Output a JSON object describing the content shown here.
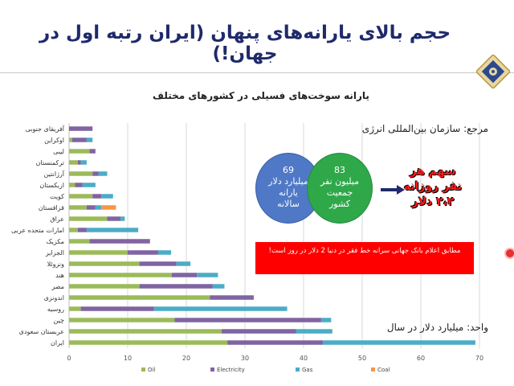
{
  "slide": {
    "title": "حجم بالای یارانه‌های پنهان (ایران رتبه اول در جهان!)",
    "chart_heading": "یارانه سوخت‌های فسیلی در کشورهای مختلف",
    "source_label": "مرجع: سازمان بین‌المللی انرژی",
    "unit_label": "واحد: میلیارد دلار در سال",
    "bubble_subsidy": {
      "number": "69",
      "text": "میلیارد دلار یارانه سالانه"
    },
    "bubble_population": {
      "number": "83",
      "text": "میلیون نفر جمعیت کشور"
    },
    "per_person": "سهم هر نفر روزانه ۲،۲ دلار",
    "poverty_note": "مطابق اعلام بانک جهانی سرانه خط فقر در دنیا 2 دلار در روز است!"
  },
  "colors": {
    "oil": "#9bbb59",
    "electricity": "#8064a2",
    "gas": "#4bacc6",
    "coal": "#f79646",
    "title": "#1f2a6b",
    "red_box": "#ff0000"
  },
  "chart_data": {
    "type": "bar",
    "orientation": "horizontal",
    "stacked": true,
    "categories": [
      "ایران",
      "عربستان سعودی",
      "چین",
      "روسیه",
      "اندونزی",
      "مصر",
      "هند",
      "ونزوئلا",
      "الجزایر",
      "مکزیک",
      "امارات متحده عربی",
      "عراق",
      "قزاقستان",
      "کویت",
      "ازبکستان",
      "آرژانتین",
      "ترکمنستان",
      "لیبی",
      "اوکراین",
      "آفریقای جنوبی"
    ],
    "series": [
      {
        "name": "Oil",
        "values": [
          27,
          26,
          18,
          2,
          24,
          12,
          17.5,
          12,
          10,
          3.5,
          1.5,
          6.5,
          3,
          4,
          1,
          4,
          1.5,
          3.5,
          0.5,
          0
        ]
      },
      {
        "name": "Electricity",
        "values": [
          16.3,
          12.7,
          25,
          12.5,
          7.5,
          12.5,
          4.3,
          6.3,
          5.2,
          10.3,
          1.5,
          2.3,
          1.5,
          1.5,
          1.3,
          1,
          0.5,
          1,
          2.5,
          4
        ]
      },
      {
        "name": "Gas",
        "values": [
          26,
          6.2,
          1.7,
          22.7,
          0,
          2,
          3.6,
          2.4,
          2.2,
          0,
          8.8,
          0.7,
          1,
          2,
          2.2,
          1.5,
          1,
          0,
          1,
          0
        ]
      },
      {
        "name": "Coal",
        "values": [
          0,
          0,
          0,
          0,
          0,
          0,
          0,
          0,
          0,
          0,
          0,
          0,
          2.5,
          0,
          0,
          0,
          0,
          0,
          0,
          0
        ]
      }
    ],
    "xlim": [
      0,
      70
    ],
    "xticks": [
      0,
      10,
      20,
      30,
      40,
      50,
      60,
      70
    ],
    "grid": "vertical",
    "legend": "bottom"
  }
}
